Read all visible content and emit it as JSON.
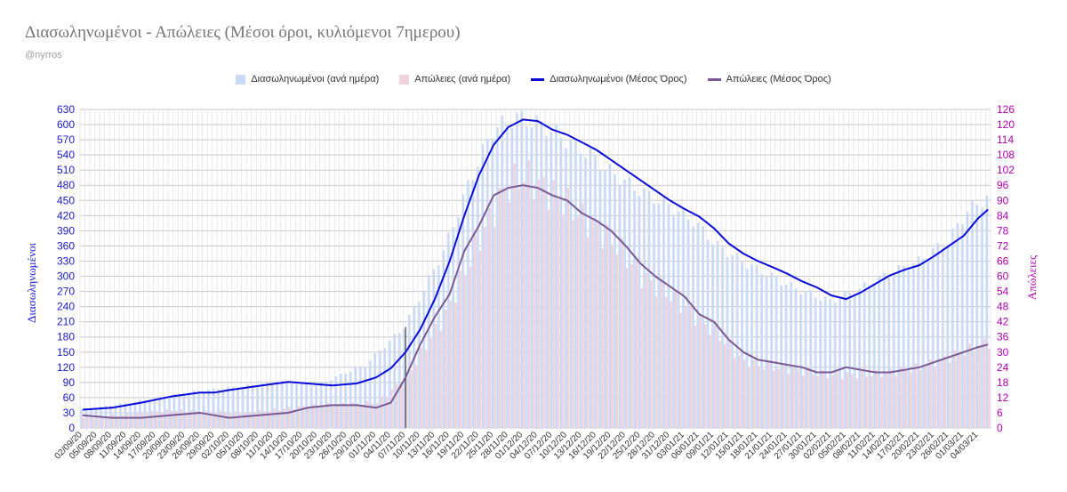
{
  "title": "Διασωληνωμένοι - Απώλειες (Μέσοι όροι, κυλιόμενοι 7ημερου)",
  "subtitle": "@nyrros",
  "colors": {
    "intubated_bar": "#c9d9f8",
    "deaths_bar": "#f0d3dd",
    "intubated_line": "#0b0bd8",
    "deaths_line": "#7a5a92",
    "left_axis": "#1a1ad0",
    "right_axis": "#b000b0",
    "grid": "#c8c8c8",
    "marker": "#222222"
  },
  "chart_data": {
    "type": "bar+line",
    "xlabel": "",
    "y_left_label": "Διασωληνωμένοι",
    "y_right_label": "Απώλειες",
    "y_left_ticks": [
      0,
      30,
      60,
      90,
      120,
      150,
      180,
      210,
      240,
      270,
      300,
      330,
      360,
      390,
      420,
      450,
      480,
      510,
      540,
      570,
      600,
      630
    ],
    "y_right_ticks": [
      0,
      6,
      12,
      18,
      24,
      30,
      36,
      42,
      48,
      54,
      60,
      66,
      72,
      78,
      84,
      90,
      96,
      102,
      108,
      114,
      120,
      126
    ],
    "y_left_range": [
      0,
      630
    ],
    "y_right_range": [
      0,
      126
    ],
    "start_date": "2020-09-02",
    "end_date": "2021-03-06",
    "x_tick_labels": [
      "02/09/20",
      "05/09/20",
      "08/09/20",
      "11/09/20",
      "14/09/20",
      "17/09/20",
      "20/09/20",
      "23/09/20",
      "26/09/20",
      "29/09/20",
      "02/10/20",
      "05/10/20",
      "08/10/20",
      "11/10/20",
      "14/10/20",
      "17/10/20",
      "20/10/20",
      "23/10/20",
      "26/10/20",
      "29/10/20",
      "01/11/20",
      "04/11/20",
      "07/11/20",
      "10/11/20",
      "13/11/20",
      "16/11/20",
      "19/11/20",
      "22/11/20",
      "25/11/20",
      "28/11/20",
      "01/12/20",
      "04/12/20",
      "07/12/20",
      "10/12/20",
      "13/12/20",
      "16/12/20",
      "19/12/20",
      "22/12/20",
      "25/12/20",
      "28/12/20",
      "31/12/20",
      "03/01/21",
      "06/01/21",
      "09/01/21",
      "12/01/21",
      "15/01/21",
      "18/01/21",
      "21/01/21",
      "24/01/21",
      "27/01/21",
      "30/01/21",
      "02/02/21",
      "05/02/21",
      "08/02/21",
      "11/02/21",
      "14/02/21",
      "17/02/21",
      "20/02/21",
      "23/02/21",
      "26/02/21",
      "01/03/21",
      "04/03/21"
    ],
    "marker_date": "2020-11-07",
    "grid": true,
    "legend_position": "top",
    "series": [
      {
        "name": "Διασωληνωμένοι (ανά ημέρα)",
        "type": "bar",
        "axis": "left",
        "anchors": [
          [
            "2020-09-02",
            36
          ],
          [
            "2020-09-15",
            55
          ],
          [
            "2020-09-25",
            72
          ],
          [
            "2020-10-05",
            82
          ],
          [
            "2020-10-12",
            92
          ],
          [
            "2020-10-20",
            85
          ],
          [
            "2020-10-30",
            125
          ],
          [
            "2020-11-07",
            200
          ],
          [
            "2020-11-15",
            350
          ],
          [
            "2020-11-20",
            480
          ],
          [
            "2020-11-25",
            590
          ],
          [
            "2020-11-30",
            615
          ],
          [
            "2020-12-05",
            600
          ],
          [
            "2020-12-10",
            570
          ],
          [
            "2020-12-15",
            540
          ],
          [
            "2020-12-20",
            500
          ],
          [
            "2020-12-25",
            470
          ],
          [
            "2020-12-31",
            440
          ],
          [
            "2021-01-05",
            410
          ],
          [
            "2021-01-10",
            360
          ],
          [
            "2021-01-15",
            330
          ],
          [
            "2021-01-20",
            305
          ],
          [
            "2021-01-25",
            280
          ],
          [
            "2021-02-02",
            250
          ],
          [
            "2021-02-08",
            275
          ],
          [
            "2021-02-14",
            305
          ],
          [
            "2021-02-20",
            330
          ],
          [
            "2021-02-26",
            370
          ],
          [
            "2021-03-02",
            430
          ],
          [
            "2021-03-06",
            455
          ]
        ]
      },
      {
        "name": "Απώλειες (ανά ημέρα)",
        "type": "bar",
        "axis": "right",
        "anchors": [
          [
            "2020-09-02",
            4
          ],
          [
            "2020-09-20",
            7
          ],
          [
            "2020-10-05",
            6
          ],
          [
            "2020-10-20",
            9
          ],
          [
            "2020-11-01",
            10
          ],
          [
            "2020-11-07",
            20
          ],
          [
            "2020-11-15",
            45
          ],
          [
            "2020-11-22",
            75
          ],
          [
            "2020-11-27",
            94
          ],
          [
            "2020-12-01",
            100
          ],
          [
            "2020-12-05",
            95
          ],
          [
            "2020-12-10",
            88
          ],
          [
            "2020-12-15",
            80
          ],
          [
            "2020-12-20",
            72
          ],
          [
            "2020-12-25",
            60
          ],
          [
            "2020-12-31",
            52
          ],
          [
            "2021-01-05",
            44
          ],
          [
            "2021-01-10",
            36
          ],
          [
            "2021-01-15",
            26
          ],
          [
            "2021-01-20",
            24
          ],
          [
            "2021-01-25",
            23
          ],
          [
            "2021-02-01",
            21
          ],
          [
            "2021-02-10",
            21
          ],
          [
            "2021-02-20",
            24
          ],
          [
            "2021-02-26",
            28
          ],
          [
            "2021-03-06",
            34
          ]
        ]
      },
      {
        "name": "Διασωληνωμένοι (Μέσος Όρος)",
        "type": "line",
        "axis": "left",
        "anchors": [
          [
            "2020-09-02",
            36
          ],
          [
            "2020-09-08",
            40
          ],
          [
            "2020-09-14",
            50
          ],
          [
            "2020-09-20",
            62
          ],
          [
            "2020-09-26",
            70
          ],
          [
            "2020-09-29",
            70
          ],
          [
            "2020-10-02",
            75
          ],
          [
            "2020-10-08",
            83
          ],
          [
            "2020-10-14",
            91
          ],
          [
            "2020-10-18",
            88
          ],
          [
            "2020-10-23",
            84
          ],
          [
            "2020-10-28",
            88
          ],
          [
            "2020-11-01",
            100
          ],
          [
            "2020-11-04",
            118
          ],
          [
            "2020-11-07",
            150
          ],
          [
            "2020-11-10",
            195
          ],
          [
            "2020-11-13",
            255
          ],
          [
            "2020-11-16",
            330
          ],
          [
            "2020-11-19",
            420
          ],
          [
            "2020-11-22",
            500
          ],
          [
            "2020-11-25",
            560
          ],
          [
            "2020-11-28",
            595
          ],
          [
            "2020-12-01",
            610
          ],
          [
            "2020-12-04",
            607
          ],
          [
            "2020-12-07",
            590
          ],
          [
            "2020-12-10",
            580
          ],
          [
            "2020-12-13",
            565
          ],
          [
            "2020-12-16",
            550
          ],
          [
            "2020-12-19",
            530
          ],
          [
            "2020-12-22",
            510
          ],
          [
            "2020-12-25",
            490
          ],
          [
            "2020-12-28",
            470
          ],
          [
            "2020-12-31",
            450
          ],
          [
            "2021-01-03",
            433
          ],
          [
            "2021-01-06",
            418
          ],
          [
            "2021-01-09",
            395
          ],
          [
            "2021-01-12",
            365
          ],
          [
            "2021-01-15",
            345
          ],
          [
            "2021-01-18",
            330
          ],
          [
            "2021-01-21",
            318
          ],
          [
            "2021-01-24",
            305
          ],
          [
            "2021-01-27",
            290
          ],
          [
            "2021-01-30",
            278
          ],
          [
            "2021-02-02",
            262
          ],
          [
            "2021-02-05",
            255
          ],
          [
            "2021-02-08",
            268
          ],
          [
            "2021-02-11",
            285
          ],
          [
            "2021-02-14",
            302
          ],
          [
            "2021-02-17",
            313
          ],
          [
            "2021-02-20",
            322
          ],
          [
            "2021-02-23",
            340
          ],
          [
            "2021-02-26",
            360
          ],
          [
            "2021-03-01",
            380
          ],
          [
            "2021-03-04",
            415
          ],
          [
            "2021-03-06",
            432
          ]
        ]
      },
      {
        "name": "Απώλειες (Μέσος Όρος)",
        "type": "line",
        "axis": "right",
        "anchors": [
          [
            "2020-09-02",
            5
          ],
          [
            "2020-09-08",
            4
          ],
          [
            "2020-09-14",
            4
          ],
          [
            "2020-09-20",
            5
          ],
          [
            "2020-09-26",
            6
          ],
          [
            "2020-09-29",
            5
          ],
          [
            "2020-10-02",
            4
          ],
          [
            "2020-10-08",
            5
          ],
          [
            "2020-10-14",
            6
          ],
          [
            "2020-10-18",
            8
          ],
          [
            "2020-10-23",
            9
          ],
          [
            "2020-10-28",
            9
          ],
          [
            "2020-11-01",
            8
          ],
          [
            "2020-11-04",
            10
          ],
          [
            "2020-11-07",
            20
          ],
          [
            "2020-11-10",
            33
          ],
          [
            "2020-11-13",
            44
          ],
          [
            "2020-11-16",
            53
          ],
          [
            "2020-11-19",
            70
          ],
          [
            "2020-11-22",
            80
          ],
          [
            "2020-11-25",
            92
          ],
          [
            "2020-11-28",
            95
          ],
          [
            "2020-12-01",
            96
          ],
          [
            "2020-12-04",
            95
          ],
          [
            "2020-12-07",
            92
          ],
          [
            "2020-12-10",
            90
          ],
          [
            "2020-12-13",
            85
          ],
          [
            "2020-12-16",
            82
          ],
          [
            "2020-12-19",
            78
          ],
          [
            "2020-12-22",
            72
          ],
          [
            "2020-12-25",
            65
          ],
          [
            "2020-12-28",
            60
          ],
          [
            "2020-12-31",
            56
          ],
          [
            "2021-01-03",
            52
          ],
          [
            "2021-01-06",
            45
          ],
          [
            "2021-01-09",
            42
          ],
          [
            "2021-01-12",
            35
          ],
          [
            "2021-01-15",
            30
          ],
          [
            "2021-01-18",
            27
          ],
          [
            "2021-01-21",
            26
          ],
          [
            "2021-01-24",
            25
          ],
          [
            "2021-01-27",
            24
          ],
          [
            "2021-01-30",
            22
          ],
          [
            "2021-02-02",
            22
          ],
          [
            "2021-02-05",
            24
          ],
          [
            "2021-02-08",
            23
          ],
          [
            "2021-02-11",
            22
          ],
          [
            "2021-02-14",
            22
          ],
          [
            "2021-02-17",
            23
          ],
          [
            "2021-02-20",
            24
          ],
          [
            "2021-02-23",
            26
          ],
          [
            "2021-02-26",
            28
          ],
          [
            "2021-03-01",
            30
          ],
          [
            "2021-03-04",
            32
          ],
          [
            "2021-03-06",
            33
          ]
        ]
      }
    ]
  }
}
